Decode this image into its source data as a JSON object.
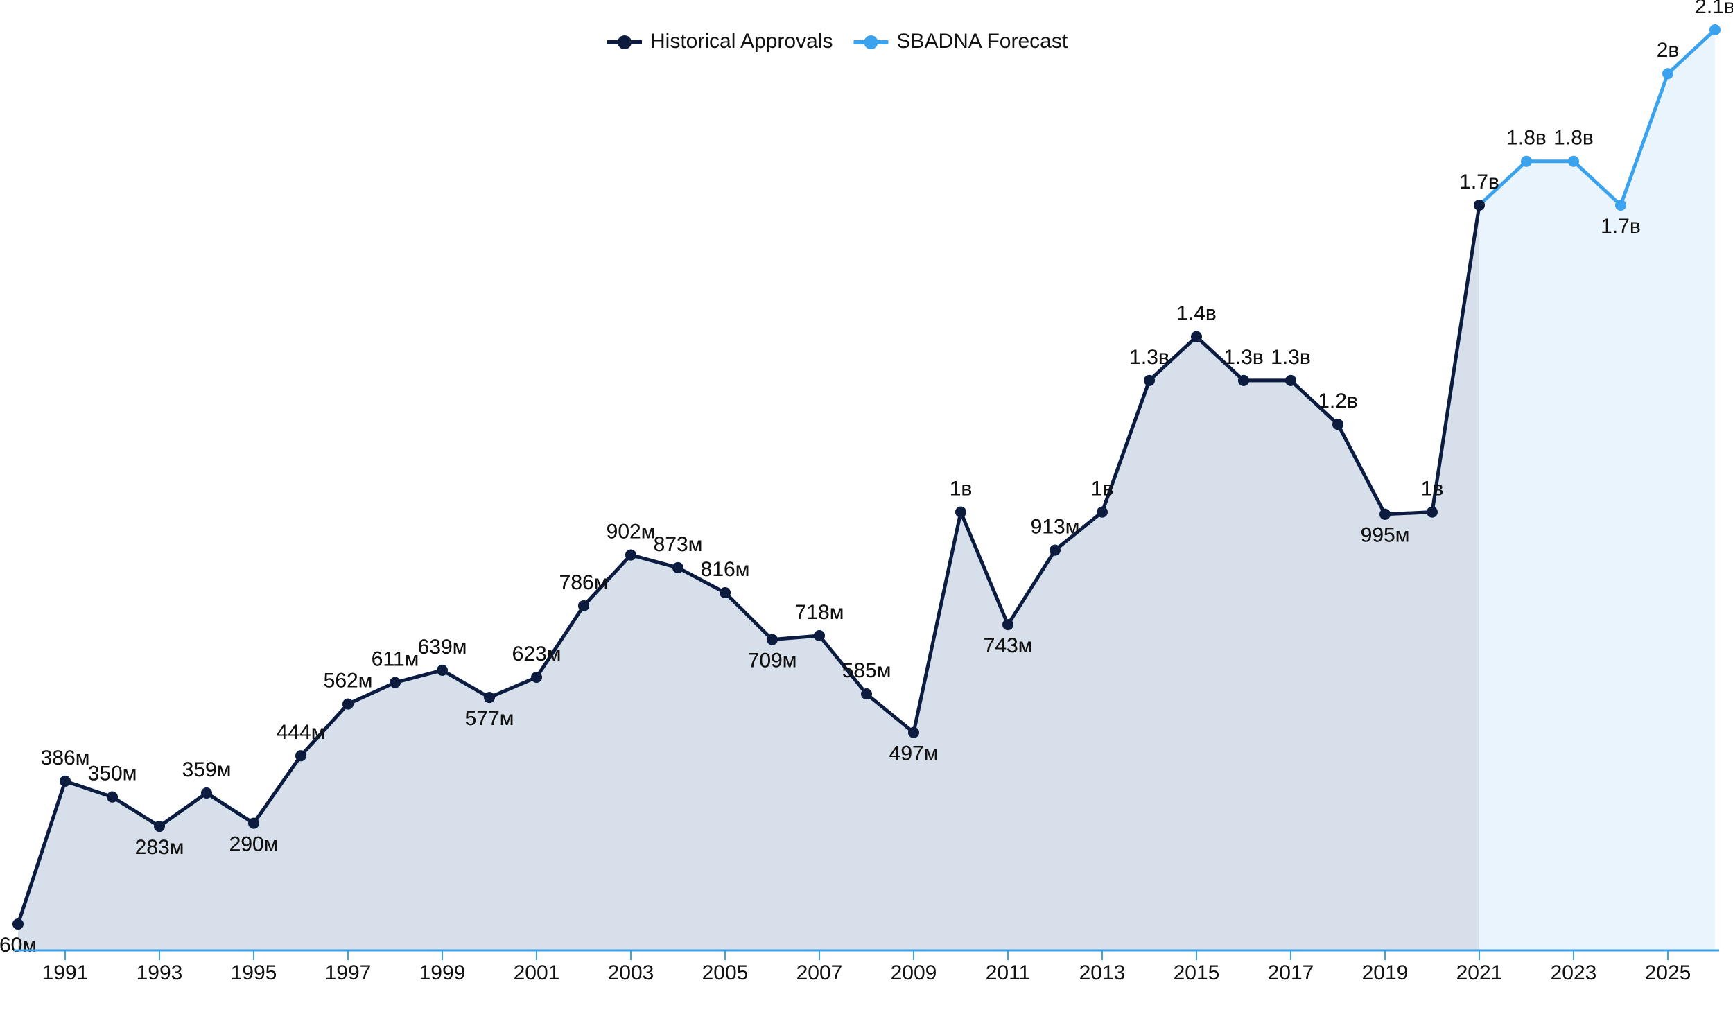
{
  "chart_data": {
    "type": "line",
    "x": [
      1990,
      1991,
      1992,
      1993,
      1994,
      1995,
      1996,
      1997,
      1998,
      1999,
      2000,
      2001,
      2002,
      2003,
      2004,
      2005,
      2006,
      2007,
      2008,
      2009,
      2010,
      2011,
      2012,
      2013,
      2014,
      2015,
      2016,
      2017,
      2018,
      2019,
      2020,
      2021,
      2022,
      2023,
      2024,
      2025,
      2026
    ],
    "series": [
      {
        "name": "SBADNA Forecast",
        "color": "#3ba2ee",
        "values": [
          60,
          386,
          350,
          283,
          359,
          290,
          444,
          562,
          611,
          639,
          577,
          623,
          786,
          902,
          873,
          816,
          709,
          718,
          585,
          497,
          1000,
          743,
          913,
          1000,
          1300,
          1400,
          1300,
          1300,
          1200,
          995,
          1000,
          1700,
          1800,
          1800,
          1700,
          2000,
          2100
        ],
        "value_labels": [
          "60м",
          "386м",
          "350м",
          "283м",
          "359м",
          "290м",
          "444м",
          "562м",
          "611м",
          "639м",
          "577м",
          "623м",
          "786м",
          "902м",
          "873м",
          "816м",
          "709м",
          "718м",
          "585м",
          "497м",
          "1в",
          "743м",
          "913м",
          "1в",
          "1.3в",
          "1.4в",
          "1.3в",
          "1.3в",
          "1.2в",
          "995м",
          "1в",
          "1.7в",
          "1.8в",
          "1.8в",
          "1.7в",
          "2в",
          "2.1в"
        ]
      },
      {
        "name": "Historical Approvals",
        "color": "#0d1b3e",
        "values": [
          60,
          386,
          350,
          283,
          359,
          290,
          444,
          562,
          611,
          639,
          577,
          623,
          786,
          902,
          873,
          816,
          709,
          718,
          585,
          497,
          1000,
          743,
          913,
          1000,
          1300,
          1400,
          1300,
          1300,
          1200,
          995,
          1000,
          1700,
          null,
          null,
          null,
          null,
          null
        ],
        "value_labels": [
          "60м",
          "386м",
          "350м",
          "283м",
          "359м",
          "290м",
          "444м",
          "562м",
          "611м",
          "639м",
          "577м",
          "623м",
          "786м",
          "902м",
          "873м",
          "816м",
          "709м",
          "718м",
          "585м",
          "497м",
          "1в",
          "743м",
          "913м",
          "1в",
          "1.3в",
          "1.4в",
          "1.3в",
          "1.3в",
          "1.2в",
          "995м",
          "1в",
          "1.7в",
          null,
          null,
          null,
          null,
          null
        ]
      }
    ],
    "xlim": [
      1990,
      2026
    ],
    "xticks": [
      1991,
      1993,
      1995,
      1997,
      1999,
      2001,
      2003,
      2005,
      2007,
      2009,
      2011,
      2013,
      2015,
      2017,
      2019,
      2021,
      2023,
      2025
    ],
    "legend": "top"
  }
}
